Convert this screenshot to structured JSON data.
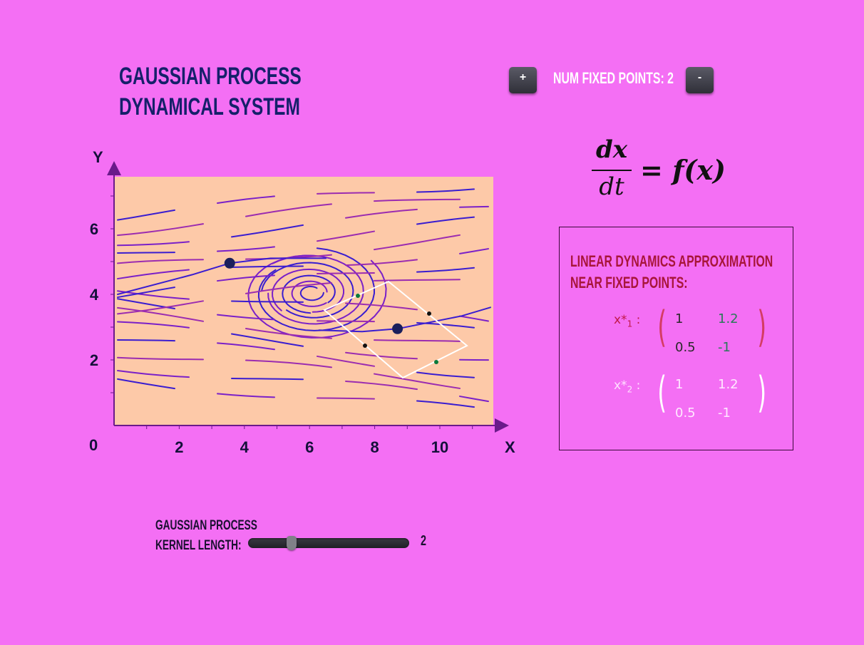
{
  "title": {
    "line1": "Gaussian Process",
    "line2": "Dynamical System"
  },
  "controls": {
    "plus_label": "+",
    "minus_label": "-",
    "fixed_points_label": "Num Fixed Points: 2"
  },
  "equation": {
    "numerator": "dx",
    "denominator": "dt",
    "rhs": "= f(x)"
  },
  "chart_data": {
    "type": "scatter",
    "xlabel": "X",
    "ylabel": "Y",
    "xlim": [
      0,
      11.5
    ],
    "ylim": [
      0,
      7.6
    ],
    "x_ticks": [
      "2",
      "4",
      "6",
      "8",
      "10"
    ],
    "y_ticks": [
      "2",
      "4",
      "6"
    ],
    "origin_label": "0",
    "fixed_points": [
      {
        "x": 3.55,
        "y": 4.95
      },
      {
        "x": 8.7,
        "y": 2.95
      }
    ],
    "plot_background": "#fdc9a8",
    "stream_colors": [
      "#3a1dd0",
      "#7a20c8",
      "#9b2cb0"
    ]
  },
  "panel": {
    "title_line1": "Linear Dynamics Approximation",
    "title_line2": "near Fixed Points:",
    "matrices": [
      {
        "label": "x",
        "sub": "1",
        "a": "1",
        "b": "1.2",
        "c": "0.5",
        "d": "-1",
        "label_color": "#c01848",
        "paren_color": "#d43c64",
        "text_color": "#2a2a2a",
        "b_color": "#2a7a5a",
        "d_color": "#2a7a5a"
      },
      {
        "label": "x",
        "sub": "2",
        "a": "1",
        "b": "1.2",
        "c": "0.5",
        "d": "-1",
        "label_color": "#ffe0ff",
        "paren_color": "#ffffff",
        "text_color": "#ffe8ff",
        "b_color": "#ffe8ff",
        "d_color": "#ffe8ff"
      }
    ]
  },
  "slider": {
    "label_line1": "Gaussian Process",
    "label_line2": "Kernel Length:",
    "value": "2"
  }
}
